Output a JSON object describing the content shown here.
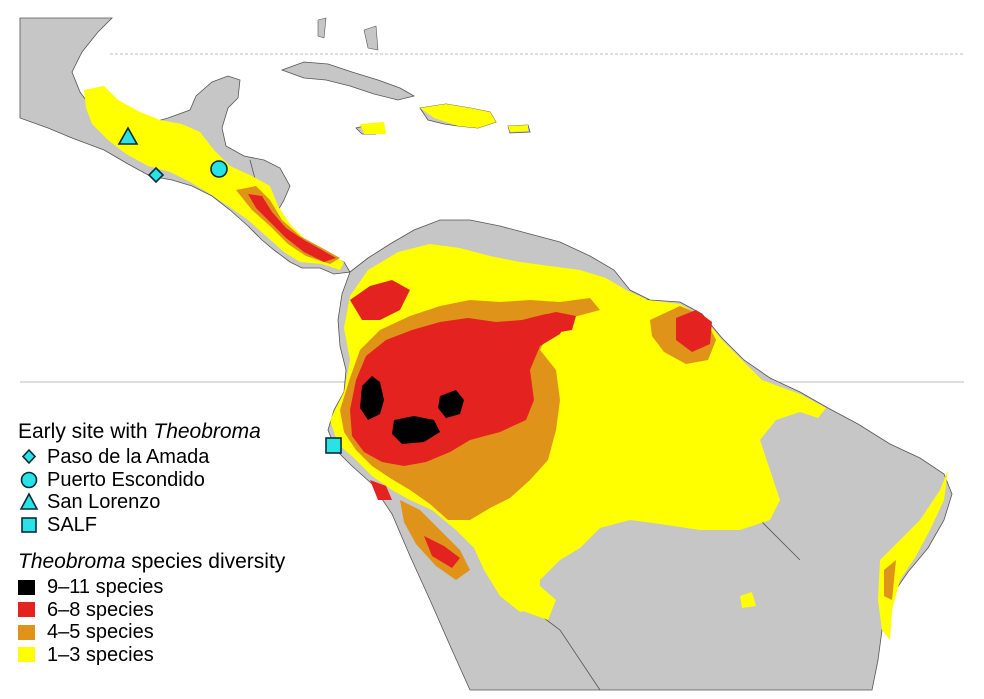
{
  "map": {
    "colors": {
      "ocean": "#ffffff",
      "land": "#c6c6c6",
      "border": "#555555",
      "marker_fill": "#27e3e5",
      "marker_stroke": "#0d2a3a",
      "class_9_11": "#000000",
      "class_6_8": "#e4221f",
      "class_4_5": "#df9318",
      "class_1_3": "#ffff00"
    },
    "sites": [
      {
        "name": "Paso de la Amada",
        "symbol": "diamond"
      },
      {
        "name": "Puerto Escondido",
        "symbol": "circle"
      },
      {
        "name": "San Lorenzo",
        "symbol": "triangle"
      },
      {
        "name": "SALF",
        "symbol": "square"
      }
    ]
  },
  "legend": {
    "sites_title_prefix": "Early site with ",
    "sites_title_genus": "Theobroma",
    "sites": [
      {
        "label": "Paso de la Amada",
        "symbol": "diamond-icon"
      },
      {
        "label": "Puerto Escondido",
        "symbol": "circle-icon"
      },
      {
        "label": "San Lorenzo",
        "symbol": "triangle-icon"
      },
      {
        "label": "SALF",
        "symbol": "square-icon"
      }
    ],
    "diversity_title_genus": "Theobroma",
    "diversity_title_suffix": " species diversity",
    "classes": [
      {
        "label": "9–11 species",
        "color": "#000000"
      },
      {
        "label": "6–8 species",
        "color": "#e4221f"
      },
      {
        "label": "4–5 species",
        "color": "#df9318"
      },
      {
        "label": "1–3 species",
        "color": "#ffff00"
      }
    ]
  }
}
